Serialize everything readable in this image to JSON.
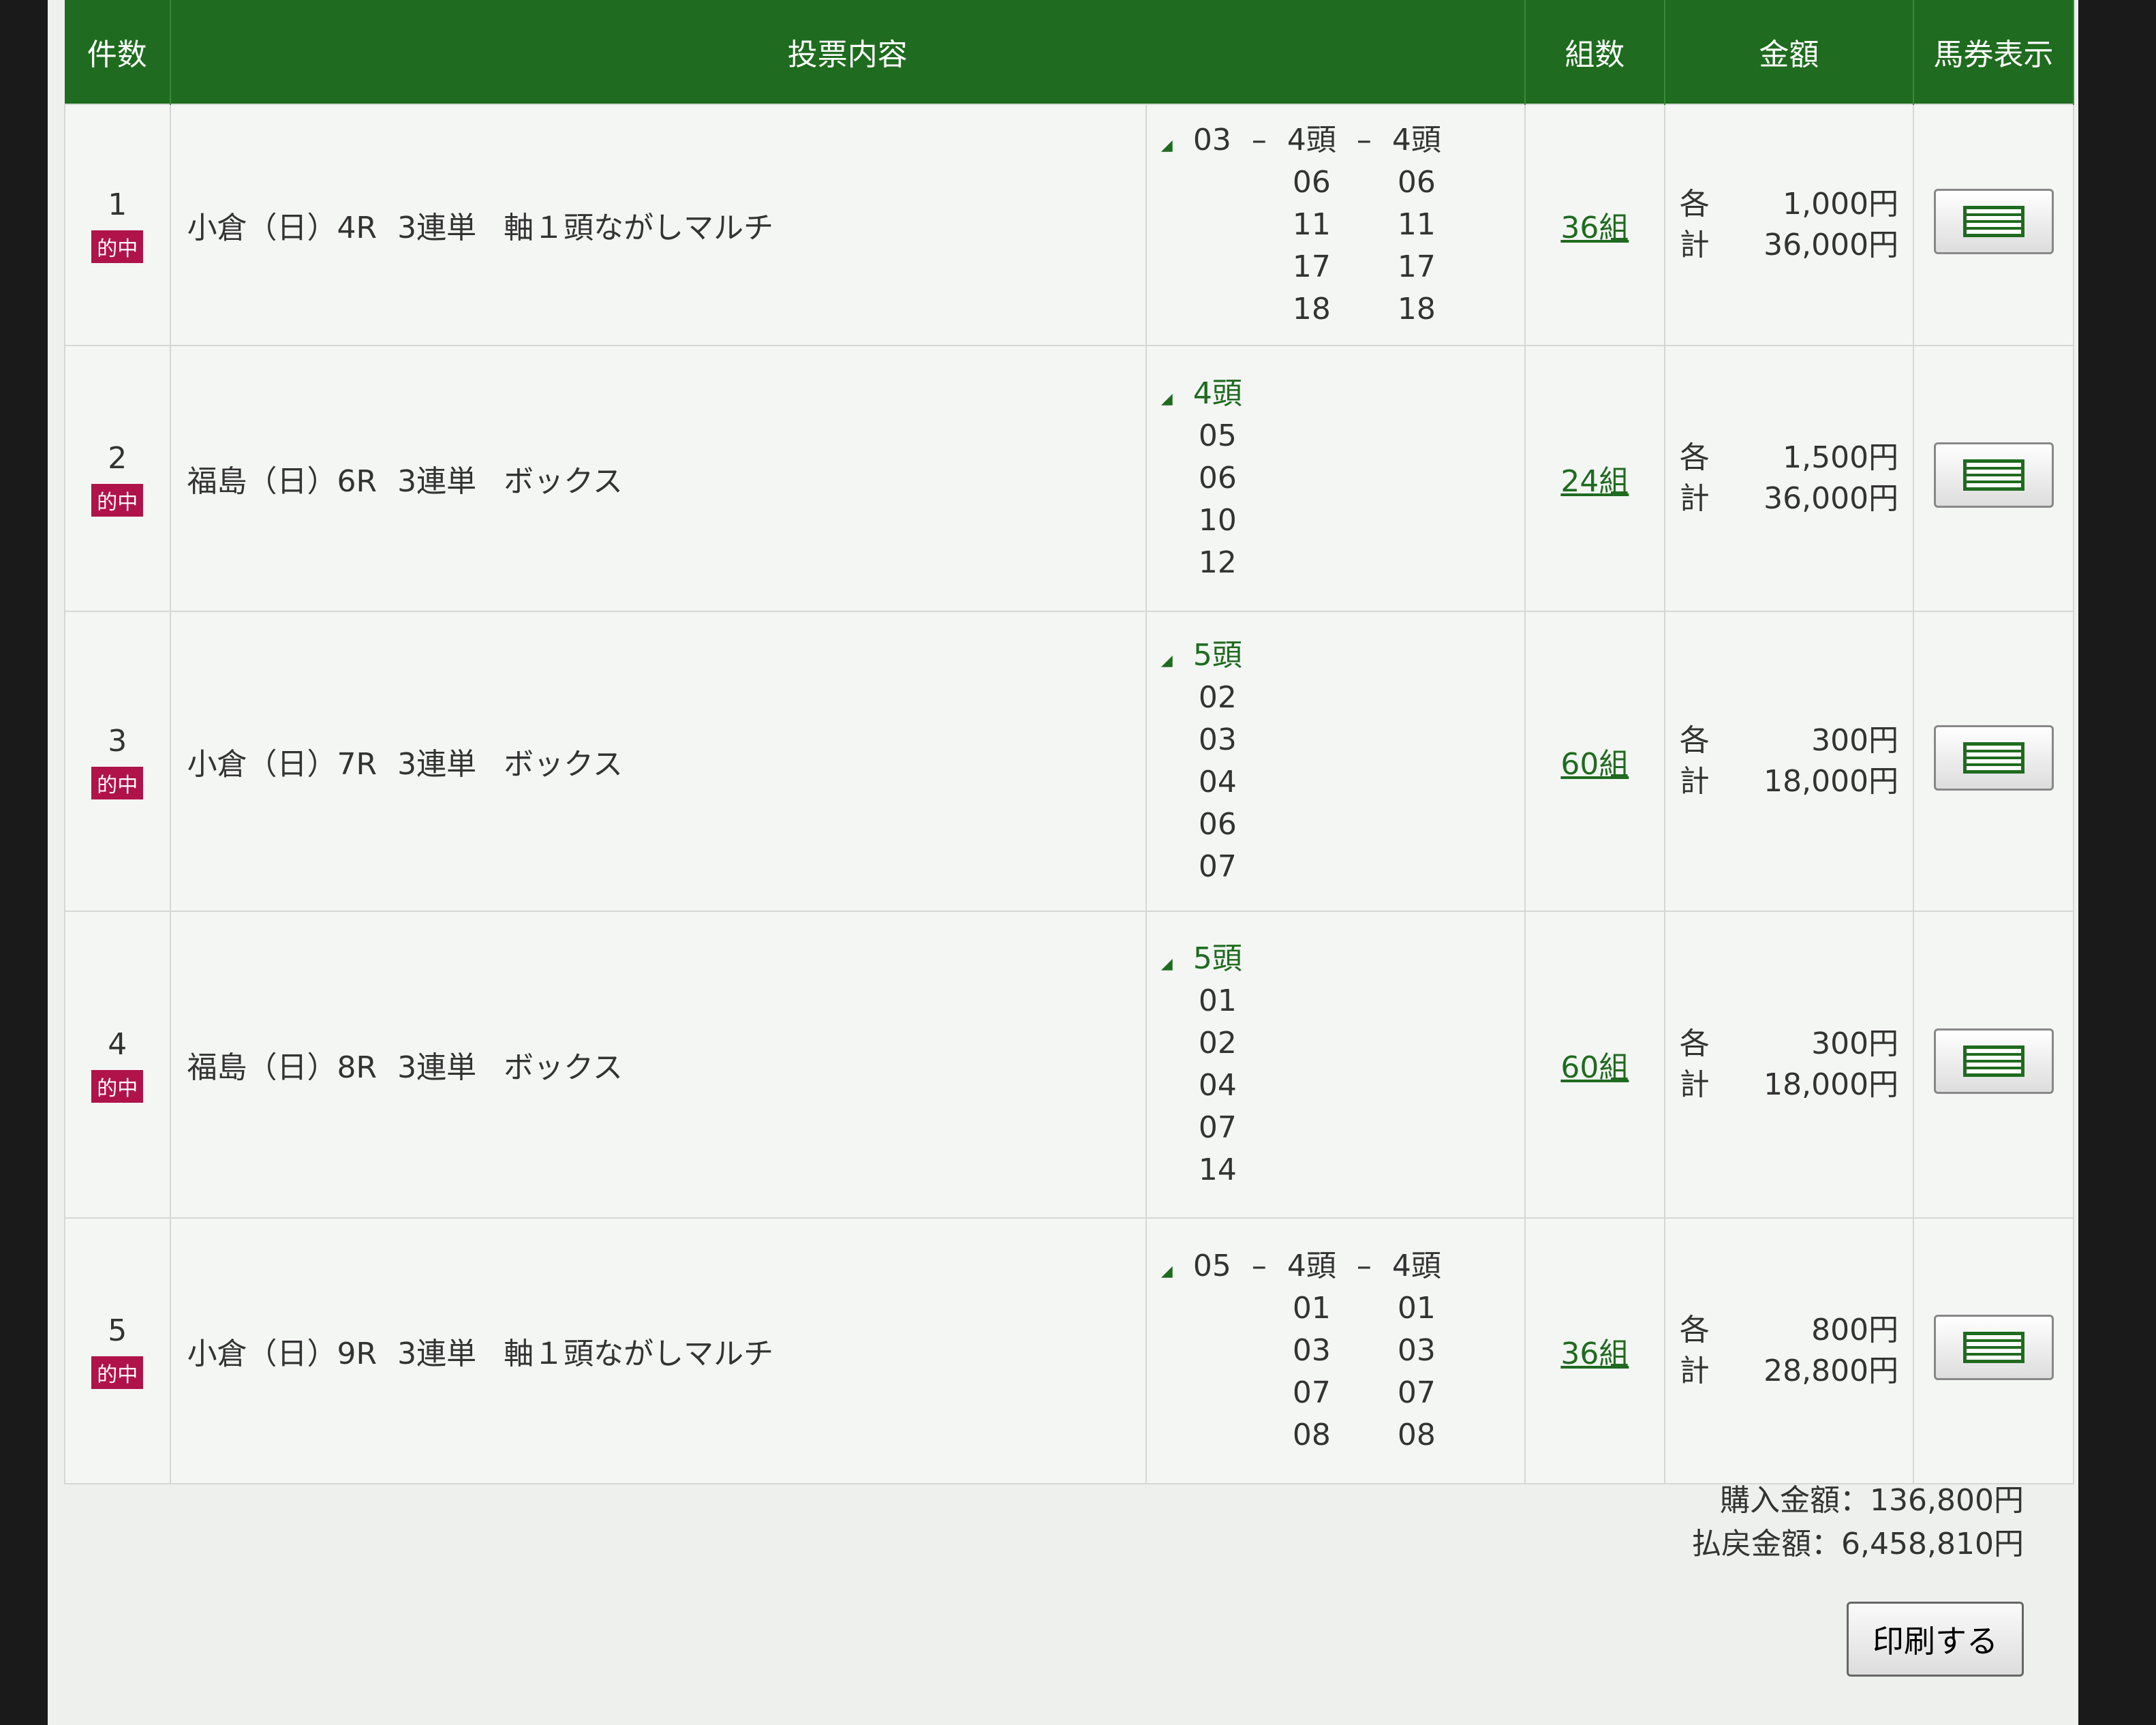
{
  "header": {
    "count": "件数",
    "content": "投票内容",
    "kumi": "組数",
    "amount": "金額",
    "ticket_view": "馬券表示"
  },
  "hit_label": "的中",
  "each_label": "各",
  "total_label": "計",
  "rows": [
    {
      "no": "1",
      "race": "小倉（日）4R",
      "type": "3連単",
      "method": "軸１頭ながしマルチ",
      "axis": "03",
      "columns": [
        {
          "head": "4頭",
          "nums": [
            "06",
            "11",
            "17",
            "18"
          ]
        },
        {
          "head": "4頭",
          "nums": [
            "06",
            "11",
            "17",
            "18"
          ]
        }
      ],
      "kumi": "36組",
      "each": "1,000円",
      "total": "36,000円"
    },
    {
      "no": "2",
      "race": "福島（日）6R",
      "type": "3連単",
      "method": "ボックス",
      "axis": "",
      "columns": [
        {
          "head": "4頭",
          "nums": [
            "05",
            "06",
            "10",
            "12"
          ]
        }
      ],
      "kumi": "24組",
      "each": "1,500円",
      "total": "36,000円"
    },
    {
      "no": "3",
      "race": "小倉（日）7R",
      "type": "3連単",
      "method": "ボックス",
      "axis": "",
      "columns": [
        {
          "head": "5頭",
          "nums": [
            "02",
            "03",
            "04",
            "06",
            "07"
          ]
        }
      ],
      "kumi": "60組",
      "each": "300円",
      "total": "18,000円"
    },
    {
      "no": "4",
      "race": "福島（日）8R",
      "type": "3連単",
      "method": "ボックス",
      "axis": "",
      "columns": [
        {
          "head": "5頭",
          "nums": [
            "01",
            "02",
            "04",
            "07",
            "14"
          ]
        }
      ],
      "kumi": "60組",
      "each": "300円",
      "total": "18,000円"
    },
    {
      "no": "5",
      "race": "小倉（日）9R",
      "type": "3連単",
      "method": "軸１頭ながしマルチ",
      "axis": "05",
      "columns": [
        {
          "head": "4頭",
          "nums": [
            "01",
            "03",
            "07",
            "08"
          ]
        },
        {
          "head": "4頭",
          "nums": [
            "01",
            "03",
            "07",
            "08"
          ]
        }
      ],
      "kumi": "36組",
      "each": "800円",
      "total": "28,800円"
    }
  ],
  "totals": {
    "purchase": "購入金額：136,800円",
    "payout": "払戻金額：6,458,810円"
  },
  "print_label": "印刷する",
  "colors": {
    "header_green": "#1f6b1f",
    "hit_badge": "#b0124a"
  }
}
